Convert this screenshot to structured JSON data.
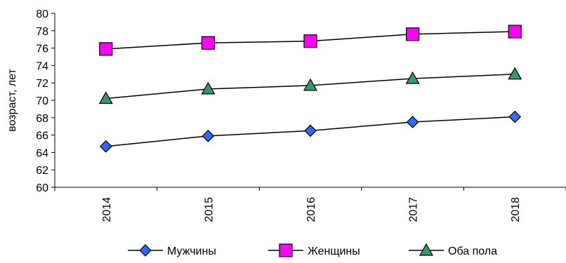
{
  "chart_data": {
    "type": "line",
    "categories": [
      "2014",
      "2015",
      "2016",
      "2017",
      "2018"
    ],
    "ylabel": "возраст, лет",
    "xlabel": "",
    "ylim": [
      60,
      80
    ],
    "yticks": [
      "60",
      "62",
      "64",
      "66",
      "68",
      "70",
      "72",
      "74",
      "76",
      "78",
      "80"
    ],
    "grid": false,
    "legend_position": "bottom",
    "series": [
      {
        "name": "Мужчины",
        "marker": "diamond",
        "color": "#3366FF",
        "values": [
          64.7,
          65.9,
          66.5,
          67.5,
          68.1
        ]
      },
      {
        "name": "Женщины",
        "marker": "square",
        "color": "#FF00FF",
        "values": [
          75.9,
          76.6,
          76.8,
          77.6,
          77.9
        ]
      },
      {
        "name": "Оба пола",
        "marker": "triangle",
        "color": "#339966",
        "values": [
          70.2,
          71.3,
          71.7,
          72.5,
          73.0
        ]
      }
    ]
  }
}
